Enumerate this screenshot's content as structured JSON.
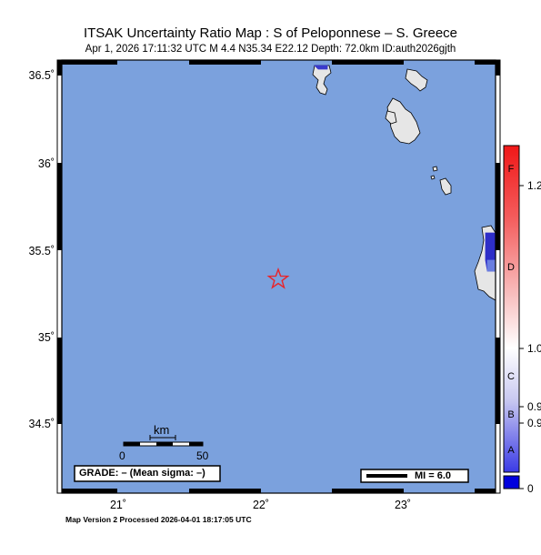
{
  "header": {
    "title": "ITSAK Uncertainty Ratio Map : S of Peloponnese – S. Greece",
    "subtitle": "Apr  1, 2026 17:11:32 UTC   M 4.4   N35.34 E22.12   Depth: 72.0km   ID:auth2026gjth"
  },
  "map": {
    "colors": {
      "sea": "#7ba1dd",
      "land": "#e6e6e6",
      "epicenter": "#e8252b",
      "frame_dark": "#000000",
      "frame_light": "#ffffff"
    },
    "lat_ticks": [
      "36.5˚",
      "36˚",
      "35.5˚",
      "35˚",
      "34.5˚"
    ],
    "lon_ticks": [
      "21˚",
      "22˚",
      "23˚"
    ],
    "epicenter": {
      "lat": 35.34,
      "lon": 22.12,
      "icon": "star-icon"
    },
    "scale_bar": {
      "unit": "km",
      "left_label": "0",
      "right_label": "50"
    },
    "grade_box": "GRADE: – (Mean sigma: –)",
    "mi_legend": "MI = 6.0"
  },
  "colorbar": {
    "letters": [
      "F",
      "D",
      "C",
      "B",
      "A"
    ],
    "values": [
      "1.2",
      "1.0",
      "0.9",
      "0.9",
      "0"
    ]
  },
  "footer": "Map Version 2 Processed 2026-04-01 18:17:05 UTC"
}
